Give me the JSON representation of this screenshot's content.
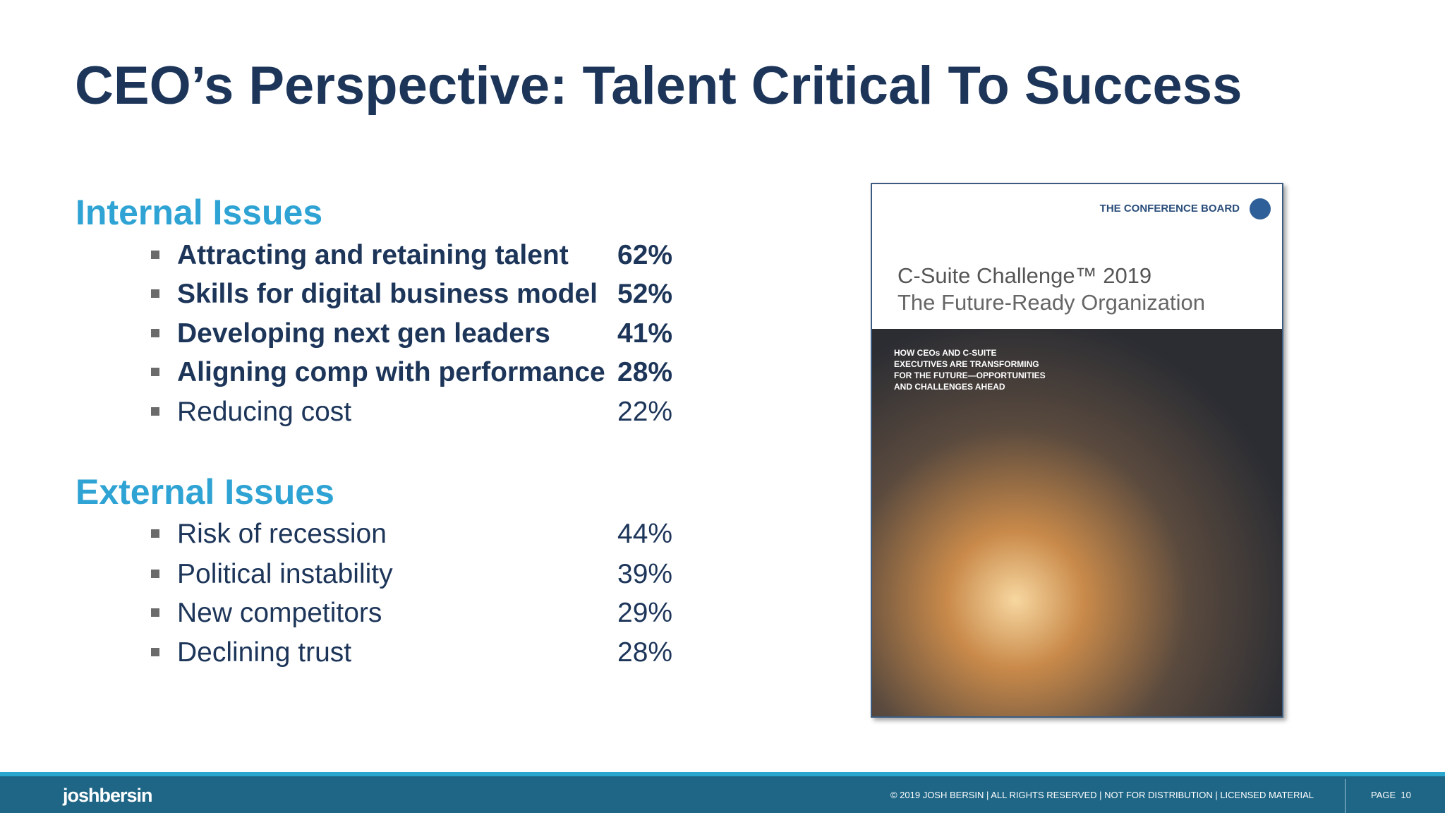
{
  "header": {
    "title": "CEO’s Perspective: Talent Critical To Success"
  },
  "internal": {
    "heading": "Internal Issues",
    "items": [
      {
        "label": "Attracting and retaining talent",
        "value": "62%"
      },
      {
        "label": "Skills for digital business model",
        "value": "52%"
      },
      {
        "label": "Developing next gen leaders",
        "value": "41%"
      },
      {
        "label": "Aligning comp with performance",
        "value": "28%"
      },
      {
        "label": "Reducing cost",
        "value": "22%"
      }
    ]
  },
  "external": {
    "heading": "External Issues",
    "items": [
      {
        "label": "Risk of recession",
        "value": "44%"
      },
      {
        "label": "Political instability",
        "value": "39%"
      },
      {
        "label": "New competitors",
        "value": "29%"
      },
      {
        "label": "Declining trust",
        "value": "28%"
      }
    ]
  },
  "cover": {
    "publisher": "THE CONFERENCE BOARD",
    "title": "C-Suite Challenge™ 2019",
    "subtitle": "The Future-Ready Organization",
    "tagline": [
      "HOW CEOs AND C-SUITE",
      "EXECUTIVES ARE TRANSFORMING",
      "FOR THE FUTURE—OPPORTUNITIES",
      "AND CHALLENGES AHEAD"
    ]
  },
  "footer": {
    "brand": "joshbersin",
    "copyright": "© 2019 JOSH BERSIN | ALL RIGHTS RESERVED | NOT FOR DISTRIBUTION | LICENSED MATERIAL",
    "page": "PAGE  10"
  }
}
